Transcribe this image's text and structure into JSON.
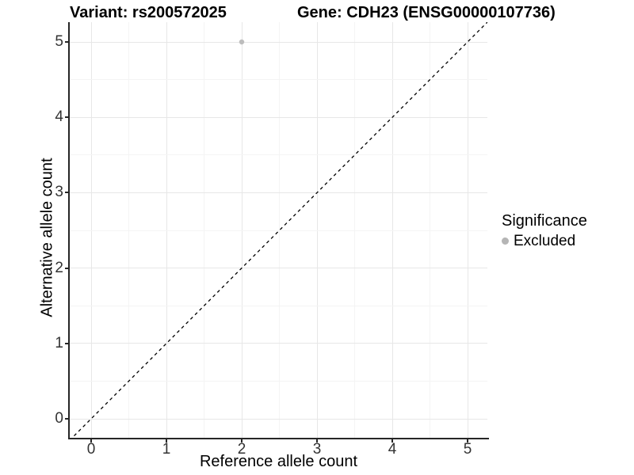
{
  "title": {
    "left": "Variant: rs200572025",
    "right": "Gene: CDH23 (ENSG00000107736)"
  },
  "chart_data": {
    "type": "scatter",
    "title": "Variant: rs200572025   Gene: CDH23 (ENSG00000107736)",
    "xlabel": "Reference allele count",
    "ylabel": "Alternative allele count",
    "x_ticks": [
      0,
      1,
      2,
      3,
      4,
      5
    ],
    "y_ticks": [
      0,
      1,
      2,
      3,
      4,
      5
    ],
    "xlim": [
      -0.28,
      5.27
    ],
    "ylim": [
      -0.25,
      5.26
    ],
    "grid": "major-and-minor",
    "points": [
      {
        "x": 2,
        "y": 5,
        "series": "Excluded"
      }
    ],
    "diagonal_line": {
      "slope": 1,
      "intercept": 0,
      "style": "dashed",
      "color": "#000000"
    },
    "legend": {
      "position": "right",
      "title": "Significance",
      "entries": [
        {
          "label": "Excluded",
          "color": "#b5b5b5",
          "marker": "circle"
        }
      ]
    },
    "colors": {
      "point": "#bdbdbd",
      "legend_dot": "#b5b5b5",
      "grid_major": "#e7e7e7",
      "grid_minor": "#f4f4f4",
      "axis_line": "#262626",
      "tick_label": "#333333",
      "dashed_line": "#000000",
      "background": "#ffffff"
    }
  }
}
